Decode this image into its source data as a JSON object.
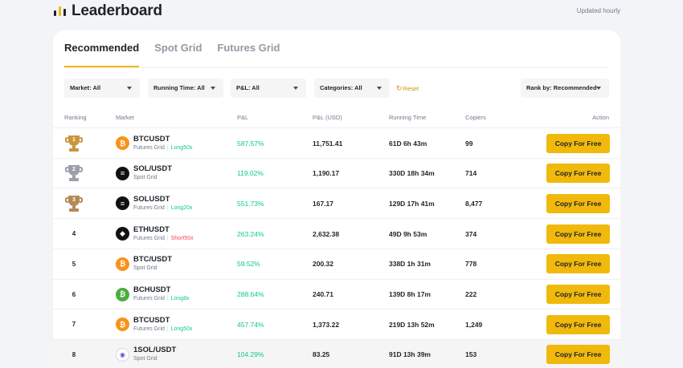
{
  "header": {
    "title": "Leaderboard",
    "updated": "Updated hourly"
  },
  "tabs": [
    "Recommended",
    "Spot Grid",
    "Futures Grid"
  ],
  "filters": {
    "market": "Market: All",
    "running_time": "Running Time: All",
    "pnl": "P&L: All",
    "categories": "Categories: All",
    "reset": "Reset",
    "rank_by": "Rank by: Recommended"
  },
  "columns": {
    "ranking": "Ranking",
    "market": "Market",
    "pnl": "P&L",
    "pnl_usd": "P&L (USD)",
    "running_time": "Running Time",
    "copiers": "Copiers",
    "action": "Action"
  },
  "copy_label": "Copy For Free",
  "colors": {
    "accent": "#f0b90b",
    "positive": "#0ecb81",
    "negative": "#f6465d",
    "gold": "#c8963e",
    "silver": "#9aa0a8",
    "bronze": "#b48a55"
  },
  "rows": [
    {
      "rank": "1",
      "trophy": "gold-trophy-icon",
      "coin_icon": "bitcoin-icon",
      "pair": "BTCUSDT",
      "type": "Futures Grid",
      "leverage": "Long50x",
      "leverage_dir": "long",
      "pnl": "587.57%",
      "pnl_usd": "11,751.41",
      "running_time": "61D 6h 43m",
      "copiers": "99"
    },
    {
      "rank": "2",
      "trophy": "silver-trophy-icon",
      "coin_icon": "solana-icon",
      "pair": "SOL/USDT",
      "type": "Spot Grid",
      "leverage": "",
      "leverage_dir": "",
      "pnl": "119.02%",
      "pnl_usd": "1,190.17",
      "running_time": "330D 18h 34m",
      "copiers": "714"
    },
    {
      "rank": "3",
      "trophy": "bronze-trophy-icon",
      "coin_icon": "solana-icon",
      "pair": "SOLUSDT",
      "type": "Futures Grid",
      "leverage": "Long20x",
      "leverage_dir": "long",
      "pnl": "551.73%",
      "pnl_usd": "167.17",
      "running_time": "129D 17h 41m",
      "copiers": "8,477"
    },
    {
      "rank": "4",
      "trophy": "",
      "coin_icon": "ethereum-icon",
      "pair": "ETHUSDT",
      "type": "Futures Grid",
      "leverage": "Short50x",
      "leverage_dir": "short",
      "pnl": "263.24%",
      "pnl_usd": "2,632.38",
      "running_time": "49D 9h 53m",
      "copiers": "374"
    },
    {
      "rank": "5",
      "trophy": "",
      "coin_icon": "bitcoin-icon",
      "pair": "BTC/USDT",
      "type": "Spot Grid",
      "leverage": "",
      "leverage_dir": "",
      "pnl": "59.52%",
      "pnl_usd": "200.32",
      "running_time": "338D 1h 31m",
      "copiers": "778"
    },
    {
      "rank": "6",
      "trophy": "",
      "coin_icon": "bitcoin-cash-icon",
      "pair": "BCHUSDT",
      "type": "Futures Grid",
      "leverage": "Long8x",
      "leverage_dir": "long",
      "pnl": "288.64%",
      "pnl_usd": "240.71",
      "running_time": "139D 8h 17m",
      "copiers": "222"
    },
    {
      "rank": "7",
      "trophy": "",
      "coin_icon": "bitcoin-icon",
      "pair": "BTCUSDT",
      "type": "Futures Grid",
      "leverage": "Long50x",
      "leverage_dir": "long",
      "pnl": "457.74%",
      "pnl_usd": "1,373.22",
      "running_time": "219D 13h 52m",
      "copiers": "1,249"
    },
    {
      "rank": "8",
      "trophy": "",
      "coin_icon": "1sol-icon",
      "pair": "1SOL/USDT",
      "type": "Spot Grid",
      "leverage": "",
      "leverage_dir": "",
      "pnl": "104.29%",
      "pnl_usd": "83.25",
      "running_time": "91D 13h 39m",
      "copiers": "153"
    }
  ]
}
